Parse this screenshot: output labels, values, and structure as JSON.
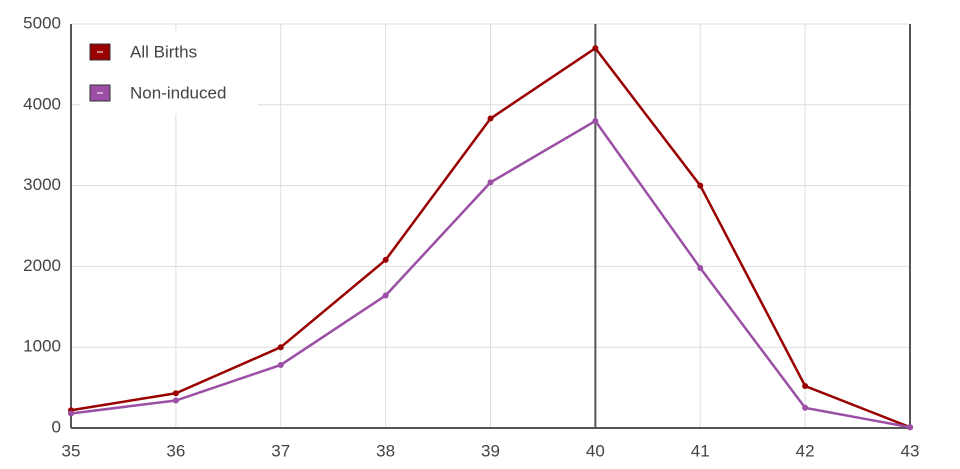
{
  "chart_data": {
    "type": "line",
    "x": [
      35,
      36,
      37,
      38,
      39,
      40,
      41,
      42,
      43
    ],
    "series": [
      {
        "name": "All Births",
        "color": "#990000",
        "values": [
          220,
          430,
          1000,
          2080,
          3830,
          4700,
          3000,
          520,
          10
        ]
      },
      {
        "name": "Non-induced",
        "color": "#9b4fa5",
        "values": [
          180,
          340,
          780,
          1640,
          3040,
          3800,
          1980,
          250,
          10
        ]
      }
    ],
    "xlim": [
      35,
      43
    ],
    "xticks": [
      35,
      36,
      37,
      38,
      39,
      40,
      41,
      42,
      43
    ],
    "ylim": [
      0,
      5000
    ],
    "yticks": [
      0,
      1000,
      2000,
      3000,
      4000,
      5000
    ],
    "grid": true,
    "marker_x": 40,
    "legend": "top-left"
  }
}
